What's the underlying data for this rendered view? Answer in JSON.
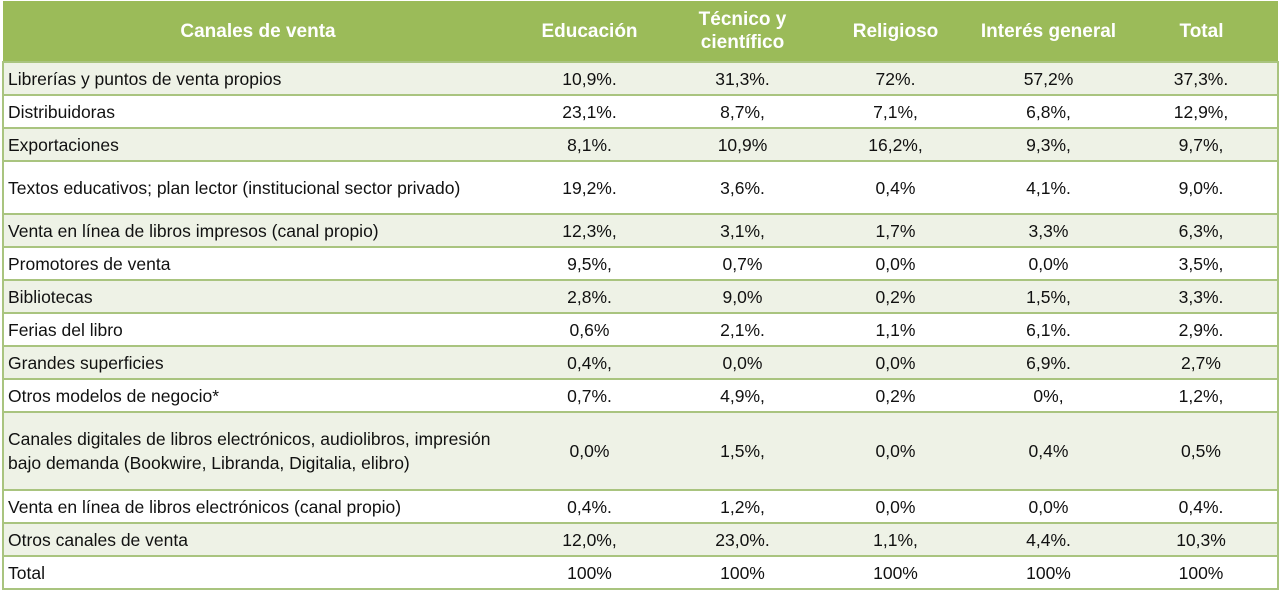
{
  "colors": {
    "header_bg": "#9bbb59",
    "row_shade": "#eef2e6",
    "border": "#a9c47f"
  },
  "headers": [
    "Canales de venta",
    "Educación",
    "Técnico y científico",
    "Religioso",
    "Interés general",
    "Total"
  ],
  "rows": [
    {
      "label": "Librerías y puntos de venta propios",
      "values": [
        "10,9%.",
        "31,3%.",
        "72%.",
        "57,2%",
        "37,3%."
      ]
    },
    {
      "label": "Distribuidoras",
      "values": [
        "23,1%.",
        "8,7%,",
        "7,1%,",
        "6,8%,",
        "12,9%,"
      ]
    },
    {
      "label": "Exportaciones",
      "values": [
        "8,1%.",
        "10,9%",
        "16,2%,",
        "9,3%,",
        "9,7%,"
      ]
    },
    {
      "label": "Textos educativos; plan lector (institucional sector privado)",
      "values": [
        "19,2%.",
        "3,6%.",
        "0,4%",
        "4,1%.",
        "9,0%."
      ]
    },
    {
      "label": "Venta en línea de libros impresos (canal propio)",
      "values": [
        "12,3%,",
        "3,1%,",
        "1,7%",
        "3,3%",
        "6,3%,"
      ]
    },
    {
      "label": "Promotores de venta",
      "values": [
        "9,5%,",
        "0,7%",
        "0,0%",
        "0,0%",
        "3,5%,"
      ]
    },
    {
      "label": "Bibliotecas",
      "values": [
        "2,8%.",
        "9,0%",
        "0,2%",
        "1,5%,",
        "3,3%."
      ]
    },
    {
      "label": "Ferias del libro",
      "values": [
        "0,6%",
        "2,1%.",
        "1,1%",
        "6,1%.",
        "2,9%."
      ]
    },
    {
      "label": "Grandes superficies",
      "values": [
        "0,4%,",
        "0,0%",
        "0,0%",
        "6,9%.",
        "2,7%"
      ]
    },
    {
      "label": "Otros modelos de negocio*",
      "values": [
        "0,7%.",
        "4,9%,",
        "0,2%",
        "0%,",
        "1,2%,"
      ]
    },
    {
      "label": "Canales digitales de libros electrónicos, audiolibros, impresión bajo demanda (Bookwire, Libranda, Digitalia, elibro)",
      "values": [
        "0,0%",
        "1,5%,",
        "0,0%",
        "0,4%",
        "0,5%"
      ]
    },
    {
      "label": "Venta en línea de libros electrónicos (canal propio)",
      "values": [
        "0,4%.",
        "1,2%,",
        "0,0%",
        "0,0%",
        "0,4%."
      ]
    },
    {
      "label": "Otros canales de venta",
      "values": [
        "12,0%,",
        "23,0%.",
        "1,1%,",
        "4,4%.",
        "10,3%"
      ]
    },
    {
      "label": "Total",
      "values": [
        "100%",
        "100%",
        "100%",
        "100%",
        "100%"
      ]
    }
  ]
}
